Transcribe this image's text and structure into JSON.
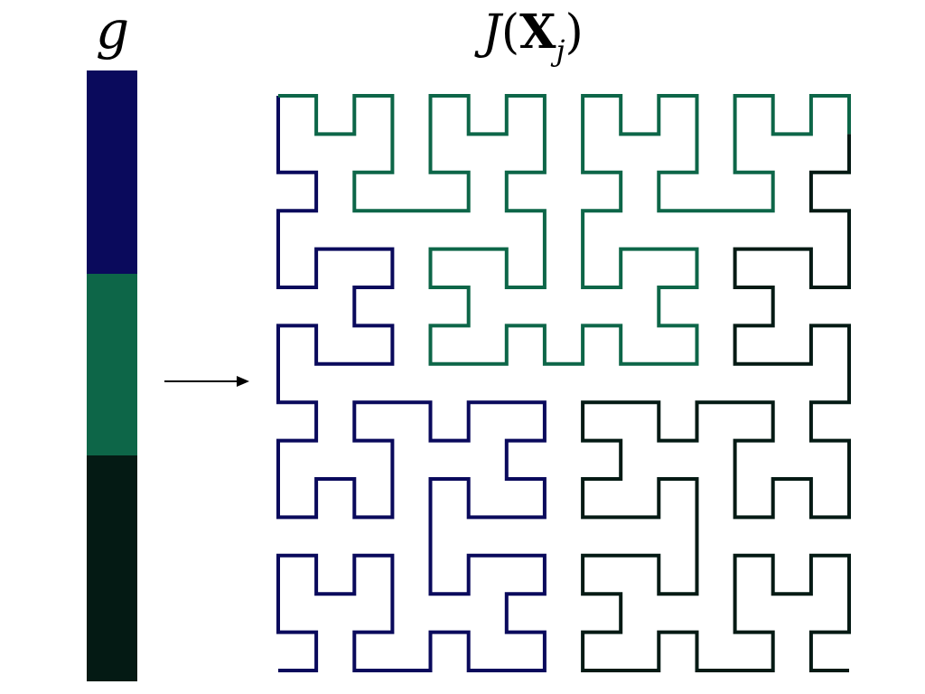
{
  "labels": {
    "g": "g",
    "title_func": "J",
    "title_open": "(",
    "title_var": "X",
    "title_sub": "j",
    "title_close": ")"
  },
  "colorbar": {
    "segments": [
      {
        "color": "#0a0a5c",
        "fraction": 0.333
      },
      {
        "color": "#0d6648",
        "fraction": 0.297
      },
      {
        "color": "#041a14",
        "fraction": 0.37
      }
    ]
  },
  "curve": {
    "order": 4,
    "grid_size": 16,
    "colors": [
      "#0a0a5c",
      "#0d6648",
      "#041a14"
    ]
  }
}
